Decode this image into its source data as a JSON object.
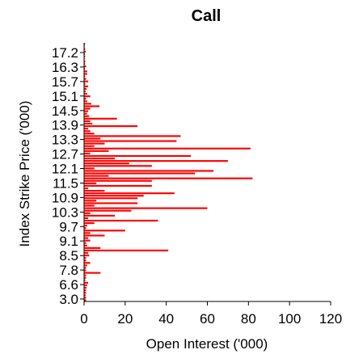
{
  "chart_data": {
    "type": "bar",
    "orientation": "horizontal",
    "title": "Call",
    "xlabel": "Open Interest ('000)",
    "ylabel": "Index Strike Price ('000)",
    "xlim": [
      0,
      120
    ],
    "x_ticks": [
      0,
      20,
      40,
      60,
      80,
      100,
      120
    ],
    "y_tick_labels": [
      "3.0",
      "6.6",
      "7.8",
      "8.5",
      "9.1",
      "9.7",
      "10.3",
      "10.9",
      "11.5",
      "12.1",
      "12.7",
      "13.3",
      "13.9",
      "14.5",
      "15.1",
      "15.7",
      "16.3",
      "17.2"
    ],
    "bar_color": "#ff0000",
    "grid": false,
    "legend": "none",
    "values": [
      0.5,
      0.3,
      0.5,
      0.8,
      0.4,
      0.5,
      0.3,
      0.6,
      0.5,
      1.0,
      0.4,
      1.5,
      1.5,
      0.5,
      1.0,
      2.0,
      0.6,
      2.0,
      1.2,
      0.8,
      1.5,
      3.0,
      1.0,
      1.5,
      3.5,
      7.5,
      3.0,
      2.0,
      1.5,
      2.5,
      16,
      3.0,
      4.0,
      26,
      2.0,
      3.0,
      5.0,
      47,
      8.0,
      45,
      10,
      5.0,
      81,
      12,
      3.0,
      52,
      15,
      70,
      22,
      33,
      5.0,
      63,
      54,
      12,
      82,
      33,
      6.0,
      33,
      2.0,
      10,
      44,
      29,
      26,
      6.0,
      26,
      5.0,
      60,
      23,
      3.0,
      15,
      2.0,
      36,
      5.0,
      1.5,
      1.0,
      20,
      3.0,
      10,
      2.0,
      3.0,
      1.0,
      1.5,
      8.0,
      41,
      2.0,
      2.5,
      1.0,
      1.0,
      3.0,
      1.5,
      1.0,
      1.0,
      8.0,
      1.0,
      1.0,
      0.6,
      2.0,
      1.5,
      1.2,
      1.0,
      1.0,
      0.8,
      1.0,
      1.0
    ]
  }
}
